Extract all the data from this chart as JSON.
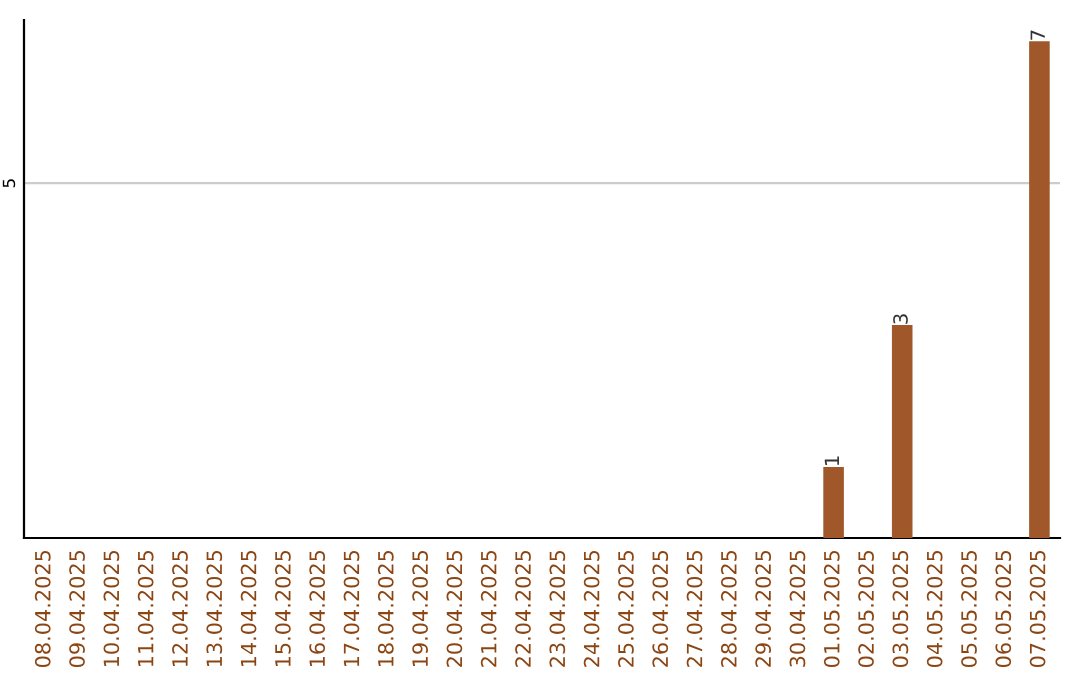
{
  "chart_data": {
    "type": "bar",
    "categories": [
      "08.04.2025",
      "09.04.2025",
      "10.04.2025",
      "11.04.2025",
      "12.04.2025",
      "13.04.2025",
      "14.04.2025",
      "15.04.2025",
      "16.04.2025",
      "17.04.2025",
      "18.04.2025",
      "19.04.2025",
      "20.04.2025",
      "21.04.2025",
      "22.04.2025",
      "23.04.2025",
      "24.04.2025",
      "25.04.2025",
      "26.04.2025",
      "27.04.2025",
      "28.04.2025",
      "29.04.2025",
      "30.04.2025",
      "01.05.2025",
      "02.05.2025",
      "03.05.2025",
      "04.05.2025",
      "05.05.2025",
      "06.05.2025",
      "07.05.2025"
    ],
    "values": [
      null,
      null,
      null,
      null,
      null,
      null,
      null,
      null,
      null,
      null,
      null,
      null,
      null,
      null,
      null,
      null,
      null,
      null,
      null,
      null,
      null,
      null,
      null,
      1,
      null,
      3,
      null,
      null,
      null,
      7
    ],
    "value_labels": [
      null,
      null,
      null,
      null,
      null,
      null,
      null,
      null,
      null,
      null,
      null,
      null,
      null,
      null,
      null,
      null,
      null,
      null,
      null,
      null,
      null,
      null,
      null,
      "1",
      null,
      "3",
      null,
      null,
      null,
      "7"
    ],
    "color": "#a0572a",
    "ylim": [
      0,
      7.3
    ],
    "yticks": [
      {
        "value": 0,
        "label": null
      },
      {
        "value": 5,
        "label": "5"
      }
    ],
    "grid": "y"
  }
}
